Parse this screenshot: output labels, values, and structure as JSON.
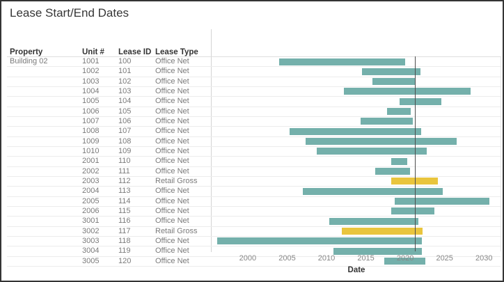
{
  "window": {
    "title": "Lease Start/End Dates"
  },
  "table": {
    "columns": [
      "Property",
      "Unit #",
      "Lease ID",
      "Lease Type"
    ],
    "property_group": "Building 02"
  },
  "chart_data": {
    "type": "bar",
    "subtype": "gantt",
    "title": "Lease Start/End Dates",
    "xlabel": "Date",
    "x_domain": [
      1995.5,
      2032.1
    ],
    "x_ticks": [
      2000,
      2005,
      2010,
      2015,
      2020,
      2025,
      2030
    ],
    "reference_line_x": 2021.2,
    "grid": "horizontal-row-lines",
    "legend": "none",
    "colors": {
      "Office Net": "#74b0ab",
      "Retail Gross": "#e9c53d",
      "reference_line": "#4d4d4d"
    },
    "rows": [
      {
        "unit": "1001",
        "lease_id": "100",
        "lease_type": "Office Net",
        "start": 2004.5,
        "end": 2020.2
      },
      {
        "unit": "1002",
        "lease_id": "101",
        "lease_type": "Office Net",
        "start": 2014.8,
        "end": 2022.1
      },
      {
        "unit": "1003",
        "lease_id": "102",
        "lease_type": "Office Net",
        "start": 2016.1,
        "end": 2021.5
      },
      {
        "unit": "1004",
        "lease_id": "103",
        "lease_type": "Office Net",
        "start": 2012.6,
        "end": 2028.4
      },
      {
        "unit": "1005",
        "lease_id": "104",
        "lease_type": "Office Net",
        "start": 2019.5,
        "end": 2024.7
      },
      {
        "unit": "1006",
        "lease_id": "105",
        "lease_type": "Office Net",
        "start": 2018.0,
        "end": 2020.9
      },
      {
        "unit": "1007",
        "lease_id": "106",
        "lease_type": "Office Net",
        "start": 2014.7,
        "end": 2021.2
      },
      {
        "unit": "1008",
        "lease_id": "107",
        "lease_type": "Office Net",
        "start": 2005.8,
        "end": 2022.2
      },
      {
        "unit": "1009",
        "lease_id": "108",
        "lease_type": "Office Net",
        "start": 2007.8,
        "end": 2026.6
      },
      {
        "unit": "1010",
        "lease_id": "109",
        "lease_type": "Office Net",
        "start": 2009.2,
        "end": 2022.9
      },
      {
        "unit": "2001",
        "lease_id": "110",
        "lease_type": "Office Net",
        "start": 2018.5,
        "end": 2020.5
      },
      {
        "unit": "2002",
        "lease_id": "111",
        "lease_type": "Office Net",
        "start": 2016.5,
        "end": 2020.8
      },
      {
        "unit": "2003",
        "lease_id": "112",
        "lease_type": "Retail Gross",
        "start": 2018.5,
        "end": 2024.3
      },
      {
        "unit": "2004",
        "lease_id": "113",
        "lease_type": "Office Net",
        "start": 2007.5,
        "end": 2024.9
      },
      {
        "unit": "2005",
        "lease_id": "114",
        "lease_type": "Office Net",
        "start": 2018.9,
        "end": 2030.7
      },
      {
        "unit": "2006",
        "lease_id": "115",
        "lease_type": "Office Net",
        "start": 2018.5,
        "end": 2023.9
      },
      {
        "unit": "3001",
        "lease_id": "116",
        "lease_type": "Office Net",
        "start": 2010.8,
        "end": 2021.9
      },
      {
        "unit": "3002",
        "lease_id": "117",
        "lease_type": "Retail Gross",
        "start": 2012.3,
        "end": 2022.4
      },
      {
        "unit": "3003",
        "lease_id": "118",
        "lease_type": "Office Net",
        "start": 1996.8,
        "end": 2022.3
      },
      {
        "unit": "3004",
        "lease_id": "119",
        "lease_type": "Office Net",
        "start": 2011.3,
        "end": 2022.3
      },
      {
        "unit": "3005",
        "lease_id": "120",
        "lease_type": "Office Net",
        "start": 2017.6,
        "end": 2022.7
      }
    ]
  }
}
